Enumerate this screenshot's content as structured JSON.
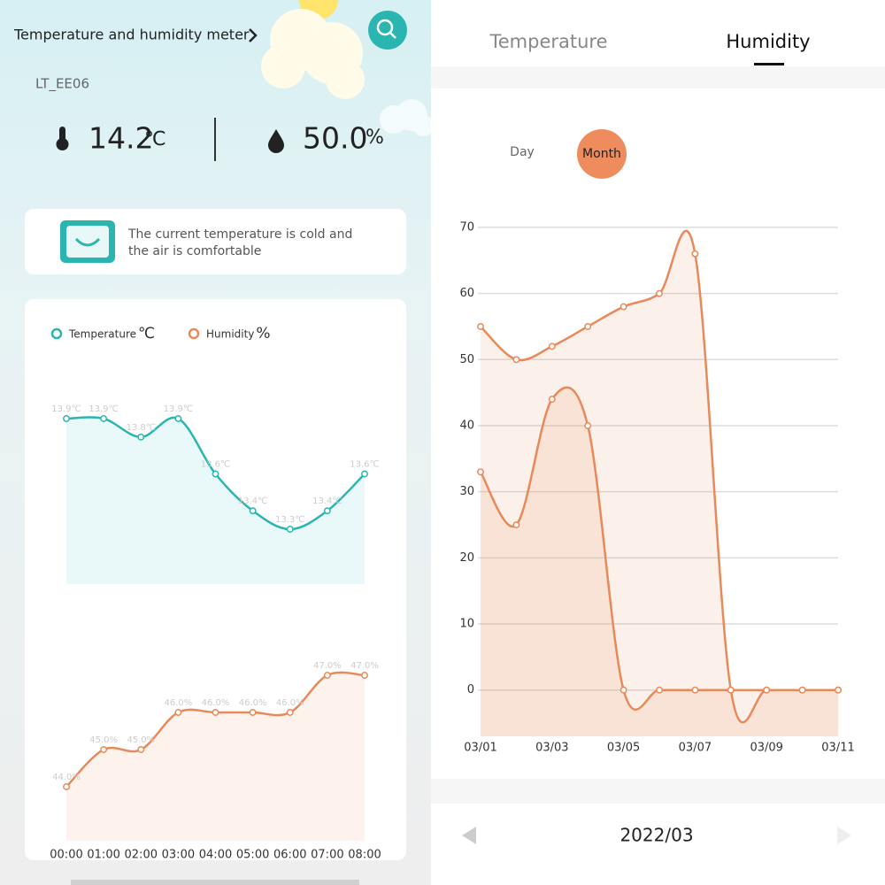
{
  "header": {
    "title": "Temperature and humidity meter",
    "device": "LT_EE06"
  },
  "reading": {
    "temperature": "14.2",
    "temperature_unit": "℃",
    "humidity": "50.0",
    "humidity_unit": "%"
  },
  "status": {
    "lines": [
      "The current temperature is cold and",
      "the air is comfortable"
    ]
  },
  "tabs": [
    "Temperature",
    "Humidity"
  ],
  "range_buttons": [
    "Day",
    "Month"
  ],
  "period": "2022/03",
  "chart_data": [
    {
      "type": "line",
      "x": [
        "00:00",
        "01:00",
        "02:00",
        "03:00",
        "04:00",
        "05:00",
        "06:00",
        "07:00",
        "08:00"
      ],
      "series": [
        {
          "name": "Temperature",
          "unit": "℃",
          "color": "#2bb5b0",
          "fill": "#e9f8f9",
          "values": [
            13.9,
            13.9,
            13.8,
            13.9,
            13.6,
            13.4,
            13.3,
            13.4,
            13.6
          ],
          "value_labels": [
            "13.9℃",
            "13.9℃",
            "13.8℃",
            "13.9℃",
            "13.6℃",
            "13.4℃",
            "13.3℃",
            "13.4℃",
            "13.6℃"
          ]
        },
        {
          "name": "Humidity",
          "unit": "%",
          "color": "#e8895a",
          "fill": "#fdf3ec",
          "values": [
            44.0,
            45.0,
            45.0,
            46.0,
            46.0,
            46.0,
            46.0,
            47.0,
            47.0
          ],
          "value_labels": [
            "44.0%",
            "45.0%",
            "45.0%",
            "46.0%",
            "46.0%",
            "46.0%",
            "46.0%",
            "47.0%",
            "47.0%"
          ]
        }
      ]
    },
    {
      "type": "line",
      "categories": [
        "03/01",
        null,
        "03/03",
        null,
        "03/05",
        null,
        "03/07",
        null,
        "03/09",
        null,
        "03/11"
      ],
      "series": [
        {
          "color": "#e8895a",
          "values": [
            55,
            50,
            52,
            55,
            58,
            60,
            66,
            0,
            0,
            0,
            0
          ]
        },
        {
          "color": "#e8895a",
          "values": [
            33,
            25,
            44,
            40,
            0,
            0,
            0,
            0,
            0,
            0,
            0
          ]
        }
      ],
      "ylim": [
        -7,
        72
      ],
      "yticks": [
        0,
        10,
        20,
        30,
        40,
        50,
        60,
        70
      ],
      "grid": true
    }
  ]
}
